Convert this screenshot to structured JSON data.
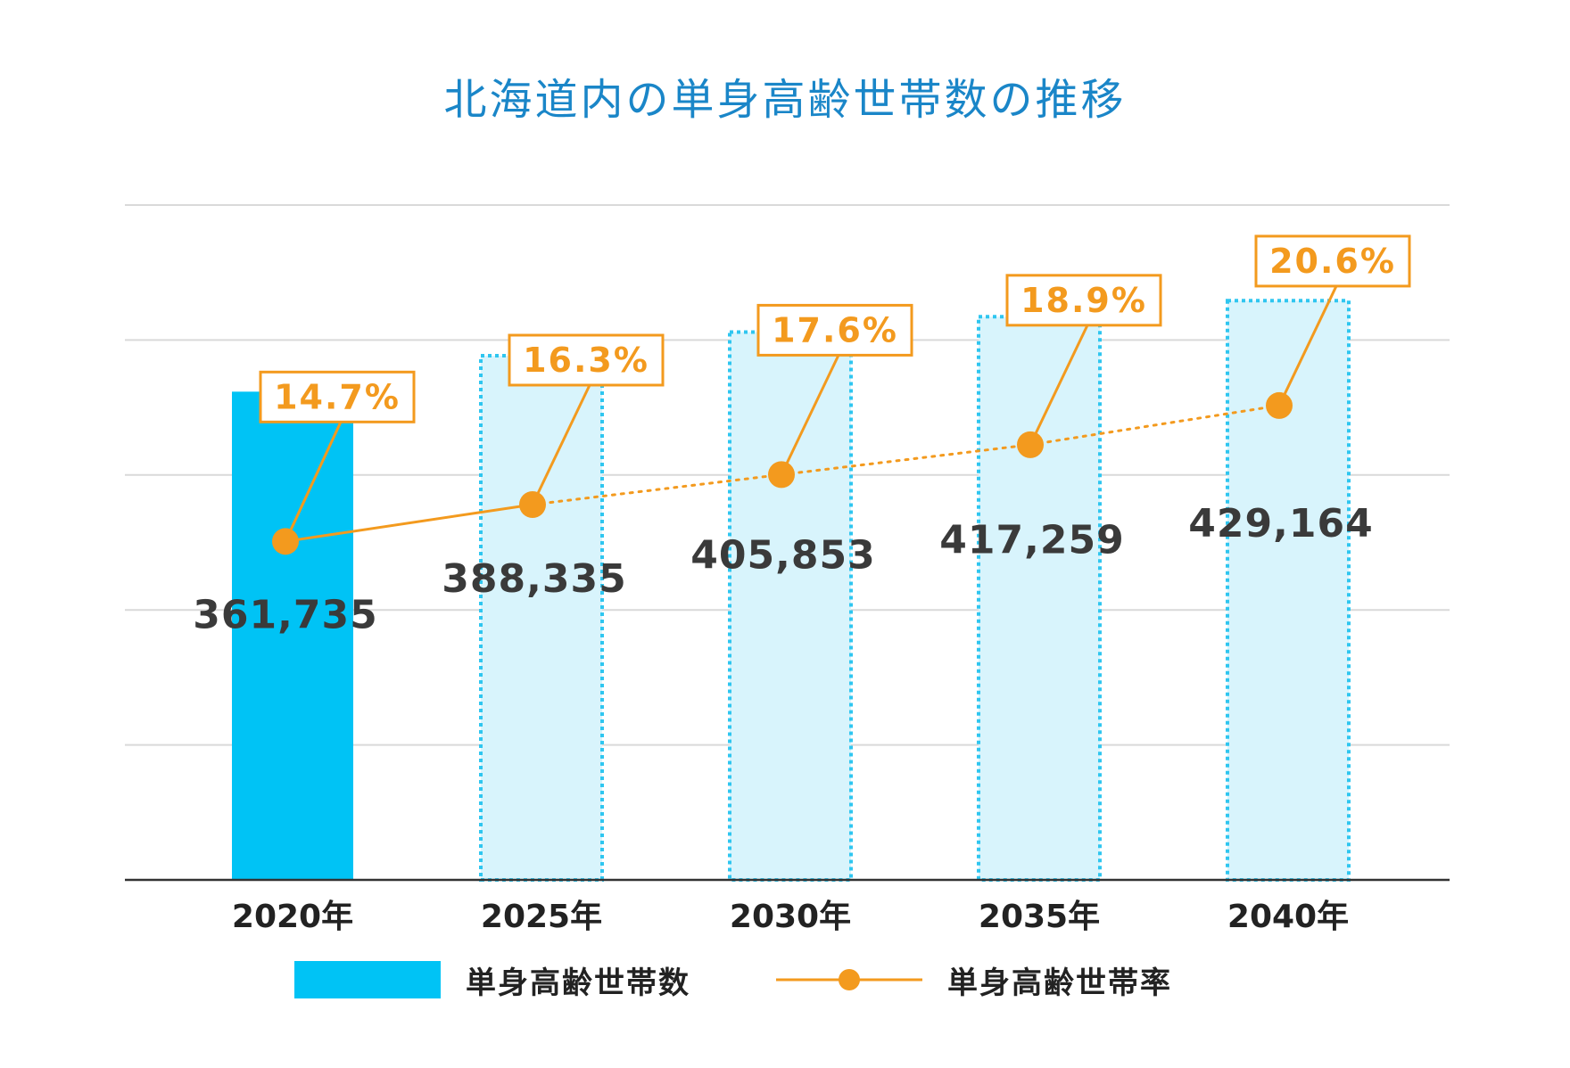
{
  "chart_data": {
    "type": "bar",
    "title": "北海道内の単身高齢世帯数の推移",
    "categories": [
      "2020年",
      "2025年",
      "2030年",
      "2035年",
      "2040年"
    ],
    "series": [
      {
        "name": "単身高齢世帯数",
        "kind": "bar",
        "values": [
          361735,
          388335,
          405853,
          417259,
          429164
        ],
        "value_labels": [
          "361,735",
          "388,335",
          "405,853",
          "417,259",
          "429,164"
        ],
        "projected": [
          false,
          true,
          true,
          true,
          true
        ]
      },
      {
        "name": "単身高齢世帯率",
        "kind": "line",
        "values": [
          14.7,
          16.3,
          17.6,
          18.9,
          20.6
        ],
        "value_labels": [
          "14.7%",
          "16.3%",
          "17.6%",
          "18.9%",
          "20.6%"
        ],
        "projected": [
          false,
          false,
          true,
          true,
          true
        ]
      }
    ],
    "ylim": [
      0,
      500000
    ],
    "rate_ylim": [
      0,
      25
    ],
    "grid": true,
    "legend_position": "bottom",
    "colors": {
      "title": "#1a86c8",
      "bar": "#00c3f5",
      "bar_projected_fill": "#d8f4fc",
      "bar_projected_border": "#2fc6f0",
      "line": "#f39a1e",
      "grid": "#d9d9d9",
      "axis": "#333333"
    }
  }
}
